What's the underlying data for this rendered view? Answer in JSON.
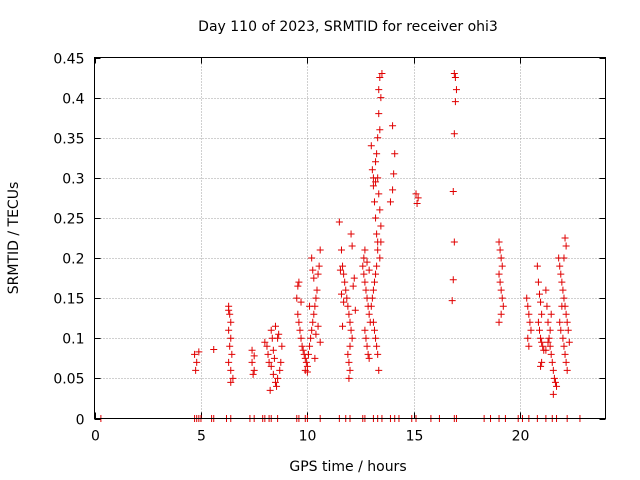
{
  "chart_data": {
    "type": "scatter",
    "title": "Day 110 of 2023, SRMTID for receiver ohi3",
    "xlabel": "GPS time / hours",
    "ylabel": "SRMTID / TECUs",
    "xlim": [
      0,
      24
    ],
    "ylim": [
      0,
      0.45
    ],
    "x_ticks": [
      0,
      5,
      10,
      15,
      20
    ],
    "y_ticks": [
      0,
      0.05,
      0.1,
      0.15,
      0.2,
      0.25,
      0.3,
      0.35,
      0.4,
      0.45
    ],
    "x_tick_labels": [
      "0",
      "5",
      "10",
      "15",
      "20"
    ],
    "y_tick_labels": [
      "0",
      "0.05",
      "0.1",
      "0.15",
      "0.2",
      "0.25",
      "0.3",
      "0.35",
      "0.4",
      "0.45"
    ],
    "grid": true,
    "marker": "+",
    "color": "#e00000",
    "series": [
      {
        "name": "ohi3",
        "points": [
          [
            0.3,
            0
          ],
          [
            4.7,
            0
          ],
          [
            4.8,
            0
          ],
          [
            4.9,
            0
          ],
          [
            5.0,
            0
          ],
          [
            5.5,
            0
          ],
          [
            5.6,
            0
          ],
          [
            6.2,
            0
          ],
          [
            6.4,
            0
          ],
          [
            7.3,
            0
          ],
          [
            7.5,
            0
          ],
          [
            7.9,
            0
          ],
          [
            8.0,
            0
          ],
          [
            8.2,
            0
          ],
          [
            8.3,
            0
          ],
          [
            8.6,
            0
          ],
          [
            9.5,
            0
          ],
          [
            9.6,
            0
          ],
          [
            9.9,
            0
          ],
          [
            10.0,
            0
          ],
          [
            10.6,
            0
          ],
          [
            11.5,
            0
          ],
          [
            11.8,
            0
          ],
          [
            12.0,
            0
          ],
          [
            12.6,
            0
          ],
          [
            12.7,
            0
          ],
          [
            13.1,
            0
          ],
          [
            13.3,
            0
          ],
          [
            13.5,
            0
          ],
          [
            13.9,
            0
          ],
          [
            14.1,
            0
          ],
          [
            14.3,
            0
          ],
          [
            14.9,
            0
          ],
          [
            15.1,
            0
          ],
          [
            15.8,
            0
          ],
          [
            16.2,
            0
          ],
          [
            16.9,
            0
          ],
          [
            17.0,
            0
          ],
          [
            18.3,
            0
          ],
          [
            18.6,
            0
          ],
          [
            19.0,
            0
          ],
          [
            19.3,
            0
          ],
          [
            19.9,
            0
          ],
          [
            20.1,
            0
          ],
          [
            20.4,
            0
          ],
          [
            20.8,
            0
          ],
          [
            21.2,
            0
          ],
          [
            21.5,
            0
          ],
          [
            21.7,
            0
          ],
          [
            22.2,
            0
          ],
          [
            22.8,
            0
          ],
          [
            4.7,
            0.08
          ],
          [
            4.8,
            0.07
          ],
          [
            4.75,
            0.06
          ],
          [
            4.9,
            0.083
          ],
          [
            5.6,
            0.086
          ],
          [
            6.3,
            0.14
          ],
          [
            6.35,
            0.13
          ],
          [
            6.4,
            0.12
          ],
          [
            6.3,
            0.11
          ],
          [
            6.4,
            0.1
          ],
          [
            6.35,
            0.09
          ],
          [
            6.45,
            0.08
          ],
          [
            6.3,
            0.07
          ],
          [
            6.4,
            0.06
          ],
          [
            6.5,
            0.05
          ],
          [
            6.4,
            0.045
          ],
          [
            6.3,
            0.135
          ],
          [
            7.4,
            0.085
          ],
          [
            7.5,
            0.078
          ],
          [
            7.4,
            0.07
          ],
          [
            7.5,
            0.06
          ],
          [
            7.45,
            0.055
          ],
          [
            8.0,
            0.095
          ],
          [
            8.1,
            0.09
          ],
          [
            8.15,
            0.08
          ],
          [
            8.2,
            0.07
          ],
          [
            8.3,
            0.11
          ],
          [
            8.35,
            0.1
          ],
          [
            8.4,
            0.085
          ],
          [
            8.45,
            0.075
          ],
          [
            8.3,
            0.065
          ],
          [
            8.4,
            0.055
          ],
          [
            8.5,
            0.045
          ],
          [
            8.55,
            0.04
          ],
          [
            8.6,
            0.05
          ],
          [
            8.7,
            0.06
          ],
          [
            8.75,
            0.07
          ],
          [
            8.8,
            0.09
          ],
          [
            8.6,
            0.1
          ],
          [
            8.5,
            0.115
          ],
          [
            8.65,
            0.105
          ],
          [
            8.25,
            0.035
          ],
          [
            9.5,
            0.15
          ],
          [
            9.55,
            0.13
          ],
          [
            9.6,
            0.12
          ],
          [
            9.65,
            0.11
          ],
          [
            9.7,
            0.1
          ],
          [
            9.75,
            0.09
          ],
          [
            9.8,
            0.085
          ],
          [
            9.85,
            0.08
          ],
          [
            9.9,
            0.075
          ],
          [
            9.95,
            0.07
          ],
          [
            10.0,
            0.065
          ],
          [
            10.05,
            0.08
          ],
          [
            10.1,
            0.09
          ],
          [
            10.15,
            0.1
          ],
          [
            10.2,
            0.11
          ],
          [
            10.25,
            0.12
          ],
          [
            10.3,
            0.13
          ],
          [
            10.35,
            0.14
          ],
          [
            10.4,
            0.15
          ],
          [
            10.45,
            0.16
          ],
          [
            10.5,
            0.18
          ],
          [
            10.55,
            0.19
          ],
          [
            10.6,
            0.21
          ],
          [
            10.2,
            0.2
          ],
          [
            10.25,
            0.185
          ],
          [
            10.3,
            0.175
          ],
          [
            9.55,
            0.165
          ],
          [
            9.6,
            0.17
          ],
          [
            9.7,
            0.145
          ],
          [
            9.9,
            0.06
          ],
          [
            10.0,
            0.058
          ],
          [
            10.1,
            0.14
          ],
          [
            10.4,
            0.105
          ],
          [
            10.5,
            0.115
          ],
          [
            10.6,
            0.095
          ],
          [
            10.35,
            0.075
          ],
          [
            11.5,
            0.245
          ],
          [
            11.6,
            0.21
          ],
          [
            11.65,
            0.19
          ],
          [
            11.7,
            0.18
          ],
          [
            11.75,
            0.17
          ],
          [
            11.8,
            0.16
          ],
          [
            11.85,
            0.15
          ],
          [
            11.9,
            0.14
          ],
          [
            11.95,
            0.13
          ],
          [
            12.0,
            0.12
          ],
          [
            12.05,
            0.11
          ],
          [
            12.1,
            0.1
          ],
          [
            12.0,
            0.09
          ],
          [
            11.9,
            0.08
          ],
          [
            11.95,
            0.07
          ],
          [
            12.0,
            0.06
          ],
          [
            11.95,
            0.05
          ],
          [
            11.6,
            0.155
          ],
          [
            11.7,
            0.145
          ],
          [
            11.65,
            0.115
          ],
          [
            12.05,
            0.23
          ],
          [
            12.1,
            0.215
          ],
          [
            11.55,
            0.185
          ],
          [
            12.2,
            0.175
          ],
          [
            12.15,
            0.165
          ],
          [
            12.25,
            0.135
          ],
          [
            12.6,
            0.19
          ],
          [
            12.65,
            0.18
          ],
          [
            12.7,
            0.17
          ],
          [
            12.75,
            0.16
          ],
          [
            12.8,
            0.15
          ],
          [
            12.85,
            0.14
          ],
          [
            12.9,
            0.13
          ],
          [
            12.95,
            0.12
          ],
          [
            12.7,
            0.11
          ],
          [
            12.75,
            0.1
          ],
          [
            12.8,
            0.09
          ],
          [
            12.85,
            0.08
          ],
          [
            12.9,
            0.075
          ],
          [
            12.65,
            0.2
          ],
          [
            12.7,
            0.21
          ],
          [
            12.8,
            0.195
          ],
          [
            12.9,
            0.185
          ],
          [
            13.0,
            0.34
          ],
          [
            13.05,
            0.31
          ],
          [
            13.1,
            0.29
          ],
          [
            13.15,
            0.27
          ],
          [
            13.2,
            0.25
          ],
          [
            13.25,
            0.23
          ],
          [
            13.3,
            0.22
          ],
          [
            13.35,
            0.41
          ],
          [
            13.4,
            0.425
          ],
          [
            13.45,
            0.4
          ],
          [
            13.35,
            0.38
          ],
          [
            13.4,
            0.36
          ],
          [
            13.3,
            0.35
          ],
          [
            13.25,
            0.33
          ],
          [
            13.2,
            0.32
          ],
          [
            13.3,
            0.3
          ],
          [
            13.35,
            0.28
          ],
          [
            13.4,
            0.26
          ],
          [
            13.45,
            0.24
          ],
          [
            13.3,
            0.21
          ],
          [
            13.25,
            0.19
          ],
          [
            13.2,
            0.18
          ],
          [
            13.15,
            0.17
          ],
          [
            13.1,
            0.16
          ],
          [
            13.05,
            0.15
          ],
          [
            13.0,
            0.14
          ],
          [
            13.1,
            0.12
          ],
          [
            13.15,
            0.11
          ],
          [
            13.2,
            0.1
          ],
          [
            13.25,
            0.09
          ],
          [
            13.3,
            0.08
          ],
          [
            13.35,
            0.06
          ],
          [
            13.4,
            0.2
          ],
          [
            13.45,
            0.22
          ],
          [
            13.5,
            0.43
          ],
          [
            13.1,
            0.3
          ],
          [
            13.2,
            0.295
          ],
          [
            13.9,
            0.27
          ],
          [
            14.0,
            0.285
          ],
          [
            14.05,
            0.305
          ],
          [
            14.1,
            0.33
          ],
          [
            14.0,
            0.365
          ],
          [
            15.1,
            0.28
          ],
          [
            15.2,
            0.275
          ],
          [
            15.15,
            0.268
          ],
          [
            16.9,
            0.43
          ],
          [
            16.95,
            0.425
          ],
          [
            17.0,
            0.41
          ],
          [
            16.95,
            0.395
          ],
          [
            16.9,
            0.355
          ],
          [
            16.85,
            0.283
          ],
          [
            16.9,
            0.22
          ],
          [
            16.85,
            0.173
          ],
          [
            16.8,
            0.147
          ],
          [
            19.0,
            0.22
          ],
          [
            19.05,
            0.21
          ],
          [
            19.1,
            0.2
          ],
          [
            19.15,
            0.19
          ],
          [
            19.0,
            0.18
          ],
          [
            19.05,
            0.17
          ],
          [
            19.1,
            0.16
          ],
          [
            19.15,
            0.15
          ],
          [
            19.2,
            0.14
          ],
          [
            19.1,
            0.13
          ],
          [
            19.0,
            0.12
          ],
          [
            20.3,
            0.15
          ],
          [
            20.35,
            0.14
          ],
          [
            20.4,
            0.13
          ],
          [
            20.45,
            0.12
          ],
          [
            20.5,
            0.11
          ],
          [
            20.35,
            0.1
          ],
          [
            20.4,
            0.09
          ],
          [
            20.8,
            0.19
          ],
          [
            20.85,
            0.17
          ],
          [
            20.9,
            0.155
          ],
          [
            20.95,
            0.145
          ],
          [
            21.0,
            0.13
          ],
          [
            20.85,
            0.12
          ],
          [
            20.9,
            0.11
          ],
          [
            20.95,
            0.1
          ],
          [
            21.0,
            0.095
          ],
          [
            21.05,
            0.09
          ],
          [
            21.1,
            0.085
          ],
          [
            21.0,
            0.07
          ],
          [
            20.95,
            0.065
          ],
          [
            21.2,
            0.16
          ],
          [
            21.25,
            0.14
          ],
          [
            21.3,
            0.12
          ],
          [
            21.35,
            0.1
          ],
          [
            21.4,
            0.09
          ],
          [
            21.45,
            0.08
          ],
          [
            21.5,
            0.07
          ],
          [
            21.55,
            0.06
          ],
          [
            21.6,
            0.05
          ],
          [
            21.65,
            0.045
          ],
          [
            21.7,
            0.04
          ],
          [
            21.55,
            0.03
          ],
          [
            21.4,
            0.11
          ],
          [
            21.45,
            0.13
          ],
          [
            21.3,
            0.095
          ],
          [
            21.2,
            0.085
          ],
          [
            21.8,
            0.2
          ],
          [
            21.85,
            0.19
          ],
          [
            21.9,
            0.18
          ],
          [
            21.95,
            0.17
          ],
          [
            22.0,
            0.16
          ],
          [
            22.05,
            0.15
          ],
          [
            22.1,
            0.14
          ],
          [
            22.15,
            0.13
          ],
          [
            22.2,
            0.12
          ],
          [
            22.25,
            0.11
          ],
          [
            22.0,
            0.1
          ],
          [
            22.05,
            0.09
          ],
          [
            22.1,
            0.08
          ],
          [
            22.15,
            0.07
          ],
          [
            22.2,
            0.06
          ],
          [
            22.1,
            0.225
          ],
          [
            22.15,
            0.215
          ],
          [
            22.05,
            0.2
          ],
          [
            21.9,
            0.11
          ],
          [
            21.85,
            0.12
          ],
          [
            21.95,
            0.14
          ],
          [
            22.3,
            0.095
          ]
        ]
      }
    ]
  }
}
